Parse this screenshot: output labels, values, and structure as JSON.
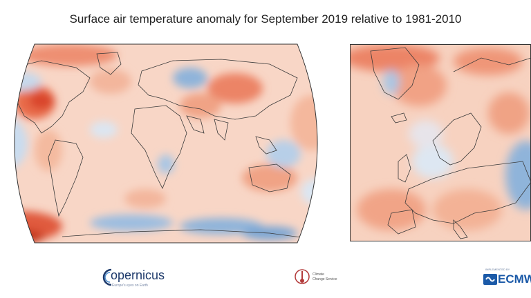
{
  "title": "Surface air temperature anomaly for September 2019 relative to 1981-2010",
  "maps": {
    "world": {
      "region": "global"
    },
    "europe": {
      "region": "europe"
    }
  },
  "colors": {
    "warm_light": "#f7d3c2",
    "warm": "#ef9a7c",
    "warm_strong": "#d9452b",
    "cool_light": "#d6e4f2",
    "cool": "#9dbfe0",
    "neutral": "#f6ece6",
    "coast": "#3a3a3a"
  },
  "logos": {
    "copernicus": {
      "name": "copernicus",
      "word": "opernicus",
      "sub": "Europe's eyes on Earth"
    },
    "c3s": {
      "line1": "Climate",
      "line2": "Change Service"
    },
    "ecmwf": {
      "small": "IMPLEMENTED BY",
      "word": "ECMWF"
    }
  }
}
